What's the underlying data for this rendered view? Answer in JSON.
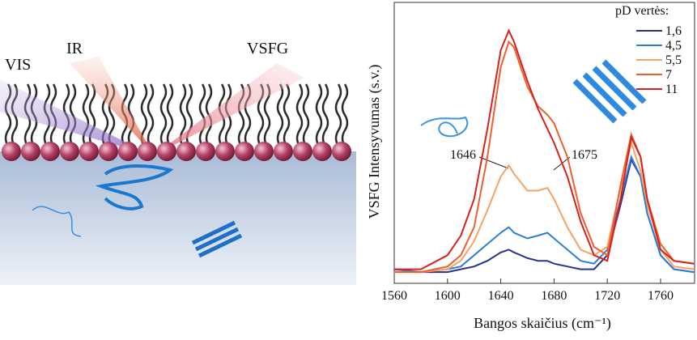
{
  "diagram": {
    "labels": [
      "VIS",
      "IR",
      "VSFG"
    ]
  },
  "chart_data": {
    "type": "line",
    "ylabel": "VSFG Intensyvumas (s.v.)",
    "xlabel": "Bangos skaičius (cm⁻¹)",
    "legend_title": "pD vertės:",
    "legend": "upper right",
    "annotations": [
      "1646",
      "1675"
    ],
    "x": [
      1560,
      1580,
      1600,
      1610,
      1620,
      1630,
      1640,
      1646,
      1650,
      1660,
      1668,
      1675,
      1680,
      1690,
      1700,
      1710,
      1720,
      1730,
      1738,
      1745,
      1750,
      1760,
      1770,
      1785
    ],
    "xlim": [
      1560,
      1785
    ],
    "xticks": [
      1560,
      1600,
      1640,
      1680,
      1720,
      1760
    ],
    "ylim": [
      0,
      1
    ],
    "series": [
      {
        "name": "1,6",
        "color": "#2b2f8f",
        "values": [
          0.05,
          0.04,
          0.04,
          0.05,
          0.06,
          0.08,
          0.11,
          0.12,
          0.11,
          0.09,
          0.08,
          0.08,
          0.07,
          0.06,
          0.05,
          0.05,
          0.1,
          0.28,
          0.44,
          0.38,
          0.25,
          0.1,
          0.05,
          0.04
        ]
      },
      {
        "name": "4,5",
        "color": "#2a7fd4",
        "values": [
          0.05,
          0.04,
          0.05,
          0.06,
          0.1,
          0.14,
          0.18,
          0.2,
          0.18,
          0.16,
          0.17,
          0.18,
          0.16,
          0.12,
          0.08,
          0.07,
          0.12,
          0.3,
          0.45,
          0.38,
          0.25,
          0.1,
          0.05,
          0.04
        ]
      },
      {
        "name": "5,5",
        "color": "#f5a262",
        "values": [
          0.04,
          0.04,
          0.05,
          0.08,
          0.15,
          0.26,
          0.38,
          0.42,
          0.39,
          0.33,
          0.33,
          0.34,
          0.3,
          0.2,
          0.12,
          0.1,
          0.13,
          0.34,
          0.5,
          0.4,
          0.28,
          0.12,
          0.06,
          0.05
        ]
      },
      {
        "name": "7",
        "color": "#ef5f2a",
        "values": [
          0.04,
          0.04,
          0.06,
          0.1,
          0.2,
          0.45,
          0.77,
          0.86,
          0.84,
          0.7,
          0.63,
          0.6,
          0.57,
          0.45,
          0.25,
          0.13,
          0.1,
          0.35,
          0.53,
          0.45,
          0.3,
          0.14,
          0.08,
          0.07
        ]
      },
      {
        "name": "11",
        "color": "#d8201e",
        "values": [
          0.05,
          0.05,
          0.1,
          0.17,
          0.3,
          0.55,
          0.83,
          0.9,
          0.86,
          0.72,
          0.62,
          0.55,
          0.5,
          0.38,
          0.22,
          0.1,
          0.08,
          0.3,
          0.52,
          0.45,
          0.3,
          0.12,
          0.08,
          0.07
        ]
      }
    ]
  }
}
